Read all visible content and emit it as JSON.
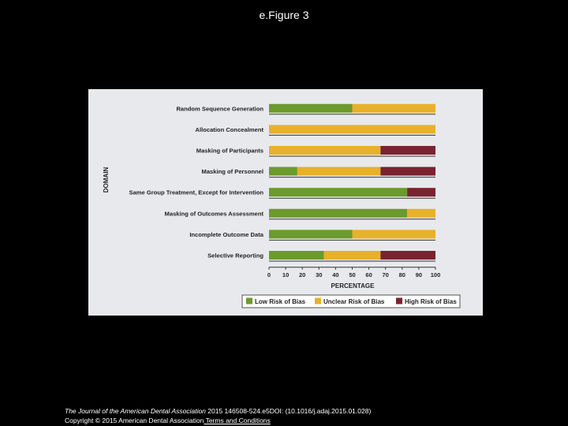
{
  "slide": {
    "title": "e.Figure 3"
  },
  "footer": {
    "journal": "The Journal of the American Dental Association",
    "citation": " 2015 146508-524.e5DOI: (10.1016/j.adaj.2015.01.028)",
    "copyright": "Copyright © 2015 American Dental Association",
    "link": " Terms and Conditions"
  },
  "colors": {
    "low": "#6c9a2c",
    "unclear": "#e7b12b",
    "high": "#7a2330",
    "panel": "#e8e9ec"
  },
  "chart_data": {
    "type": "bar",
    "orientation": "horizontal",
    "stacked": true,
    "ylabel": "DOMAIN",
    "xlabel": "PERCENTAGE",
    "xlim": [
      0,
      100
    ],
    "xticks": [
      0,
      10,
      20,
      30,
      40,
      50,
      60,
      70,
      80,
      90,
      100
    ],
    "legend_position": "bottom-right",
    "categories": [
      "Random Sequence Generation",
      "Allocation Concealment",
      "Masking of Participants",
      "Masking of Personnel",
      "Same Group Treatment, Except for Intervention",
      "Masking of Outcomes Assessment",
      "Incomplete Outcome Data",
      "Selective Reporting"
    ],
    "series": [
      {
        "name": "Low Risk of Bias",
        "color": "#6c9a2c",
        "values": [
          50,
          0,
          0,
          17,
          83,
          83,
          50,
          33
        ]
      },
      {
        "name": "Unclear Risk of Bias",
        "color": "#e7b12b",
        "values": [
          50,
          100,
          67,
          50,
          0,
          17,
          50,
          34
        ]
      },
      {
        "name": "High Risk of Bias",
        "color": "#7a2330",
        "values": [
          0,
          0,
          33,
          33,
          17,
          0,
          0,
          33
        ]
      }
    ]
  }
}
